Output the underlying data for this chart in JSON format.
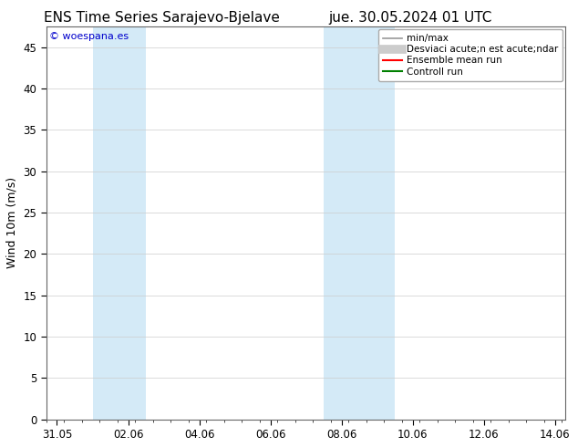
{
  "title_left": "ENS Time Series Sarajevo-Bjelave",
  "title_right": "jue. 30.05.2024 01 UTC",
  "ylabel": "Wind 10m (m/s)",
  "ylim": [
    0,
    47.5
  ],
  "yticks": [
    0,
    5,
    10,
    15,
    20,
    25,
    30,
    35,
    40,
    45
  ],
  "xlim_start": -0.3,
  "xlim_end": 14.3,
  "xtick_labels": [
    "31.05",
    "02.06",
    "04.06",
    "06.06",
    "08.06",
    "10.06",
    "12.06",
    "14.06"
  ],
  "xtick_positions": [
    0,
    2,
    4,
    6,
    8,
    10,
    12,
    14
  ],
  "shaded_regions": [
    {
      "xmin": 1.0,
      "xmax": 2.5,
      "color": "#d4eaf7"
    },
    {
      "xmin": 7.5,
      "xmax": 9.5,
      "color": "#d4eaf7"
    }
  ],
  "copyright_text": "© woespana.es",
  "legend_labels": [
    "min/max",
    "Desviaci acute;n est acute;ndar",
    "Ensemble mean run",
    "Controll run"
  ],
  "legend_colors": [
    "#999999",
    "#cccccc",
    "#ff0000",
    "#008000"
  ],
  "legend_lws": [
    1.2,
    7,
    1.5,
    1.5
  ],
  "background_color": "#ffffff",
  "plot_bg_color": "#ffffff",
  "grid_color": "#cccccc",
  "title_fontsize": 11,
  "axis_fontsize": 9,
  "tick_fontsize": 8.5,
  "copyright_fontsize": 8,
  "legend_fontsize": 7.5
}
